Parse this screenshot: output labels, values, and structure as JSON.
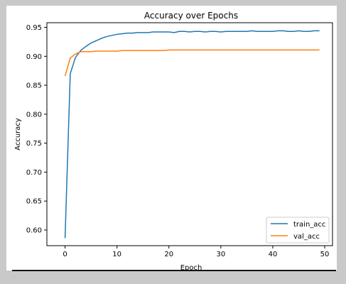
{
  "colors": {
    "train": "#1f77b4",
    "val": "#ff7f0e",
    "page_bg": "#c9c9c9",
    "figure_bg": "#ffffff"
  },
  "chart_data": {
    "type": "line",
    "title": "Accuracy over Epochs",
    "xlabel": "Epoch",
    "ylabel": "Accuracy",
    "xlim": [
      -3.5,
      51.5
    ],
    "ylim": [
      0.573,
      0.958
    ],
    "xticks": [
      0,
      10,
      20,
      30,
      40,
      50
    ],
    "yticks": [
      0.6,
      0.65,
      0.7,
      0.75,
      0.8,
      0.85,
      0.9,
      0.95
    ],
    "ytick_labels": [
      "0.60",
      "0.65",
      "0.70",
      "0.75",
      "0.80",
      "0.85",
      "0.90",
      "0.95"
    ],
    "legend_position": "lower-right",
    "grid": false,
    "x": [
      0,
      1,
      2,
      3,
      4,
      5,
      6,
      7,
      8,
      9,
      10,
      11,
      12,
      13,
      14,
      15,
      16,
      17,
      18,
      19,
      20,
      21,
      22,
      23,
      24,
      25,
      26,
      27,
      28,
      29,
      30,
      31,
      32,
      33,
      34,
      35,
      36,
      37,
      38,
      39,
      40,
      41,
      42,
      43,
      44,
      45,
      46,
      47,
      48,
      49
    ],
    "series": [
      {
        "name": "train_acc",
        "color": "#1f77b4",
        "values": [
          0.586,
          0.87,
          0.898,
          0.91,
          0.917,
          0.923,
          0.927,
          0.931,
          0.934,
          0.936,
          0.938,
          0.939,
          0.94,
          0.94,
          0.941,
          0.941,
          0.941,
          0.942,
          0.942,
          0.942,
          0.942,
          0.941,
          0.943,
          0.943,
          0.942,
          0.943,
          0.943,
          0.942,
          0.943,
          0.943,
          0.942,
          0.943,
          0.943,
          0.943,
          0.943,
          0.943,
          0.944,
          0.943,
          0.943,
          0.943,
          0.943,
          0.944,
          0.944,
          0.943,
          0.943,
          0.944,
          0.943,
          0.943,
          0.944,
          0.944
        ]
      },
      {
        "name": "val_acc",
        "color": "#ff7f0e",
        "values": [
          0.866,
          0.897,
          0.904,
          0.908,
          0.908,
          0.908,
          0.909,
          0.909,
          0.909,
          0.909,
          0.909,
          0.91,
          0.91,
          0.91,
          0.91,
          0.91,
          0.91,
          0.91,
          0.91,
          0.91,
          0.911,
          0.911,
          0.911,
          0.911,
          0.911,
          0.911,
          0.911,
          0.911,
          0.911,
          0.911,
          0.911,
          0.911,
          0.911,
          0.911,
          0.911,
          0.911,
          0.911,
          0.911,
          0.911,
          0.911,
          0.911,
          0.911,
          0.911,
          0.911,
          0.911,
          0.911,
          0.911,
          0.911,
          0.911,
          0.911
        ]
      }
    ]
  }
}
